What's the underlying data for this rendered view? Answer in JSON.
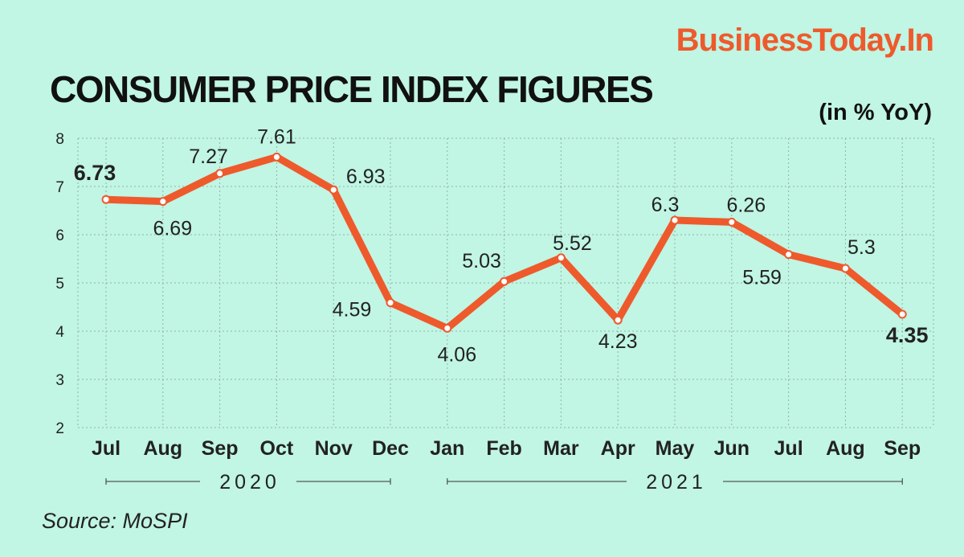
{
  "brand": "BusinessToday.In",
  "title": "CONSUMER PRICE INDEX FIGURES",
  "unit": "(in % YoY)",
  "source": "Source: MoSPI",
  "chart_data": {
    "type": "line",
    "title": "CONSUMER PRICE INDEX FIGURES",
    "ylabel": "(in % YoY)",
    "categories": [
      "Jul",
      "Aug",
      "Sep",
      "Oct",
      "Nov",
      "Dec",
      "Jan",
      "Feb",
      "Mar",
      "Apr",
      "May",
      "Jun",
      "Jul",
      "Aug",
      "Sep"
    ],
    "values": [
      6.73,
      6.69,
      7.27,
      7.61,
      6.93,
      4.59,
      4.06,
      5.03,
      5.52,
      4.23,
      6.3,
      6.26,
      5.59,
      5.3,
      4.35
    ],
    "value_labels": [
      "6.73",
      "6.69",
      "7.27",
      "7.61",
      "6.93",
      "4.59",
      "4.06",
      "5.03",
      "5.52",
      "4.23",
      "6.3",
      "6.26",
      "5.59",
      "5.3",
      "4.35"
    ],
    "ylim": [
      2,
      8
    ],
    "yticks": [
      "2",
      "3",
      "4",
      "5",
      "6",
      "7",
      "8"
    ],
    "years": [
      {
        "label": "2020",
        "from": 0,
        "to": 5
      },
      {
        "label": "2021",
        "from": 6,
        "to": 14
      }
    ],
    "grid": true,
    "line_color": "#ee5a2c",
    "grid_color": "#8fb5a6"
  }
}
